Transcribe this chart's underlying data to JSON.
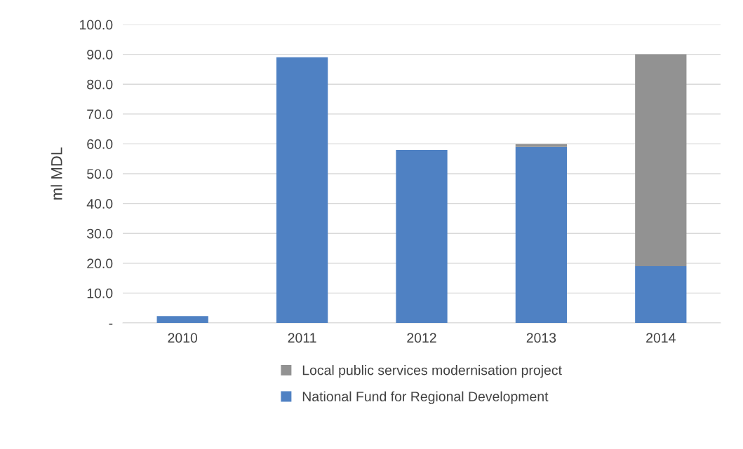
{
  "chart_data": {
    "type": "bar",
    "stacked": true,
    "ylabel": "ml MDL",
    "categories": [
      "2010",
      "2011",
      "2012",
      "2013",
      "2014"
    ],
    "series": [
      {
        "name": "National Fund for Regional Development",
        "color": "#4f81c3",
        "values": [
          2.3,
          89.0,
          58.0,
          59.0,
          19.0
        ]
      },
      {
        "name": "Local public services modernisation project",
        "color": "#929292",
        "values": [
          0,
          0,
          0,
          0.9,
          71.0
        ]
      }
    ],
    "ylim": [
      0,
      100
    ],
    "yticks": [
      {
        "value": 0,
        "label": "-"
      },
      {
        "value": 10,
        "label": "10.0"
      },
      {
        "value": 20,
        "label": "20.0"
      },
      {
        "value": 30,
        "label": "30.0"
      },
      {
        "value": 40,
        "label": "40.0"
      },
      {
        "value": 50,
        "label": "50.0"
      },
      {
        "value": 60,
        "label": "60.0"
      },
      {
        "value": 70,
        "label": "70.0"
      },
      {
        "value": 80,
        "label": "80.0"
      },
      {
        "value": 90,
        "label": "90.0"
      },
      {
        "value": 100,
        "label": "100.0"
      }
    ],
    "grid": "y",
    "legend": "bottom"
  }
}
